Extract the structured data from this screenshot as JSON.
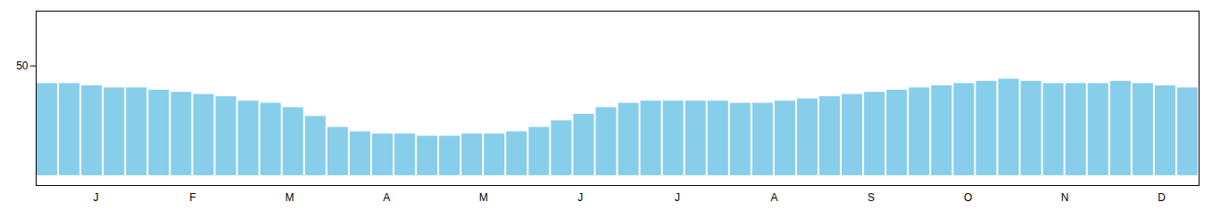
{
  "chart_data": {
    "type": "bar",
    "x": [
      1,
      2,
      3,
      4,
      5,
      6,
      7,
      8,
      9,
      10,
      11,
      12,
      13,
      14,
      15,
      16,
      17,
      18,
      19,
      20,
      21,
      22,
      23,
      24,
      25,
      26,
      27,
      28,
      29,
      30,
      31,
      32,
      33,
      34,
      35,
      36,
      37,
      38,
      39,
      40,
      41,
      42,
      43,
      44,
      45,
      46,
      47,
      48,
      49,
      50,
      51,
      52
    ],
    "values": [
      42,
      42,
      41,
      40,
      40,
      39,
      38,
      37,
      36,
      34,
      33,
      31,
      27,
      22,
      20,
      19,
      19,
      18,
      18,
      19,
      19,
      20,
      22,
      25,
      28,
      31,
      33,
      34,
      34,
      34,
      34,
      33,
      33,
      34,
      35,
      36,
      37,
      38,
      39,
      40,
      41,
      42,
      43,
      44,
      43,
      42,
      42,
      42,
      43,
      42,
      41,
      40
    ],
    "color": "#87CEEB",
    "xlim": [
      0.5,
      52.5
    ],
    "xticks": [
      {
        "value": 3.17,
        "label": "J"
      },
      {
        "value": 7.5,
        "label": "F"
      },
      {
        "value": 11.83,
        "label": "M"
      },
      {
        "value": 16.17,
        "label": "A"
      },
      {
        "value": 20.5,
        "label": "M"
      },
      {
        "value": 24.83,
        "label": "J"
      },
      {
        "value": 29.17,
        "label": "J"
      },
      {
        "value": 33.5,
        "label": "A"
      },
      {
        "value": 37.83,
        "label": "S"
      },
      {
        "value": 42.17,
        "label": "O"
      },
      {
        "value": 46.5,
        "label": "N"
      },
      {
        "value": 50.83,
        "label": "D"
      }
    ],
    "ylim": [
      -4.5,
      75
    ],
    "yticks": [
      50
    ],
    "grid": false
  }
}
